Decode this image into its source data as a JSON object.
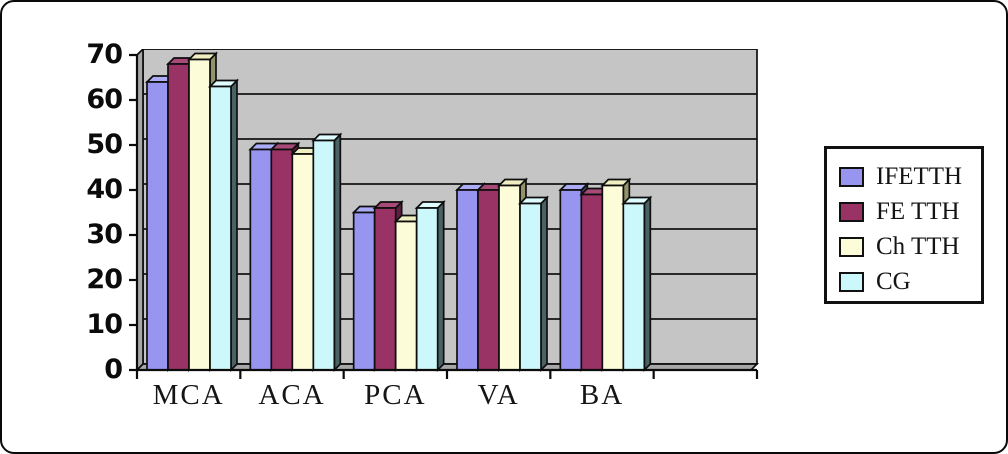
{
  "chart_data": {
    "type": "bar",
    "style": "3d-clustered-column",
    "title": "",
    "xlabel": "",
    "ylabel": "",
    "categories": [
      "MCA",
      "ACA",
      "PCA",
      "VA",
      "BA"
    ],
    "series": [
      {
        "name": "IFETTH",
        "color": "#9795F0",
        "top_color": "#ACABF5",
        "side_color": "#45456B",
        "values": [
          64,
          49,
          35,
          40,
          40
        ]
      },
      {
        "name": "FE TTH",
        "color": "#993366",
        "top_color": "#A84A77",
        "side_color": "#5E1F40",
        "values": [
          68,
          49,
          36,
          40,
          39
        ]
      },
      {
        "name": "Ch TTH",
        "color": "#FCFCD9",
        "top_color": "#EFEFC2",
        "side_color": "#93936B",
        "values": [
          69,
          48,
          33,
          41,
          41
        ]
      },
      {
        "name": "CG",
        "color": "#CDF8FB",
        "top_color": "#DFFDFE",
        "side_color": "#4A6263",
        "values": [
          63,
          51,
          36,
          37,
          37
        ]
      }
    ],
    "ylim": [
      0,
      70
    ],
    "y_ticks": [
      0,
      10,
      20,
      30,
      40,
      50,
      60,
      70
    ],
    "x_slot_count": 6,
    "grid": true,
    "legend_position": "right",
    "colors": {
      "plot_background": "#C5C5C5",
      "wall_shade": "#A7A7A7",
      "gridline": "#141414",
      "outline": "#0e0e0e",
      "axis": "#0b0b0b",
      "frame_border": "#0a0a0a",
      "page_background": "#ffffff",
      "text": "#141414"
    }
  }
}
